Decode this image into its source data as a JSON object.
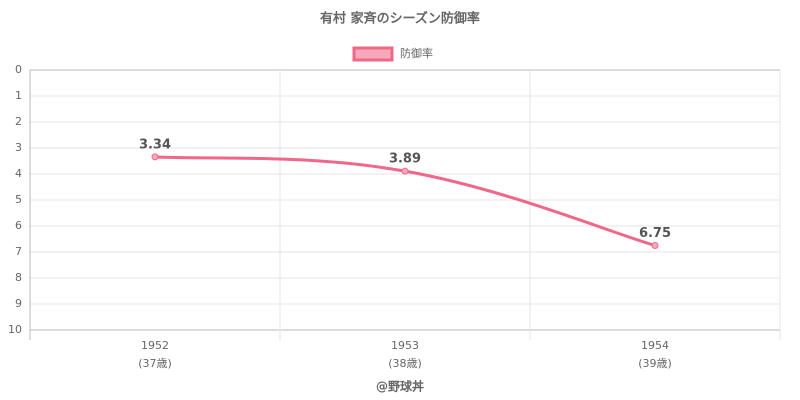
{
  "chart_data": {
    "type": "line",
    "title": "有村 家斉のシーズン防御率",
    "categories": [
      [
        "1952",
        "(37歳)"
      ],
      [
        "1953",
        "(38歳)"
      ],
      [
        "1954",
        "(39歳)"
      ]
    ],
    "series": [
      {
        "name": "防御率",
        "color": "#f06787",
        "values": [
          3.34,
          3.89,
          6.75
        ]
      }
    ],
    "ylim": [
      0,
      10
    ],
    "yticks": [
      0,
      1,
      2,
      3,
      4,
      5,
      6,
      7,
      8,
      9,
      10
    ],
    "y_reversed": true,
    "grid": true,
    "legend": "top",
    "credit": "@野球丼"
  }
}
